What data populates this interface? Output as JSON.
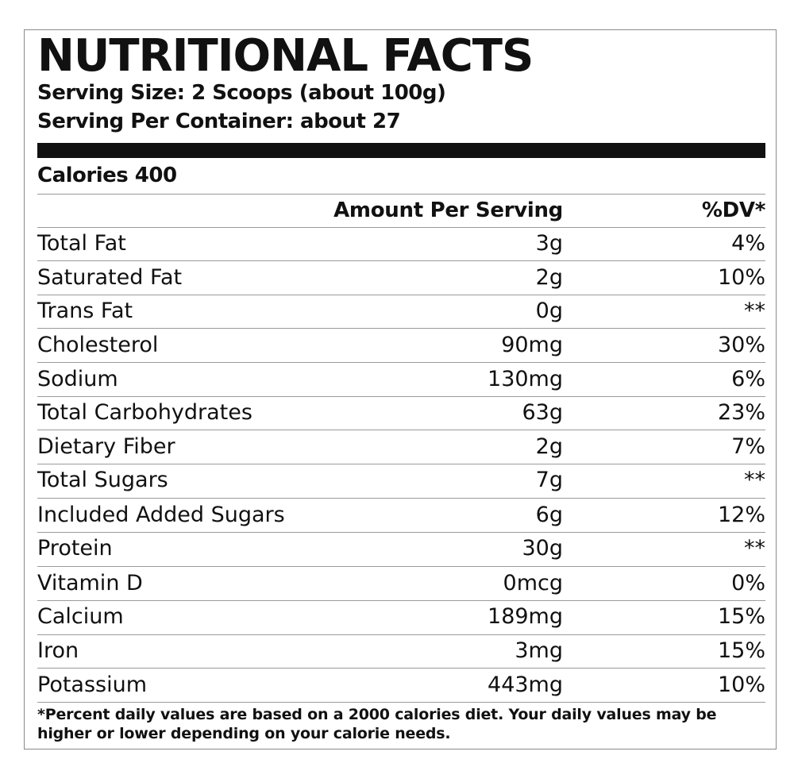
{
  "label": {
    "title": "NUTRITIONAL FACTS",
    "serving_size": "Serving Size: 2 Scoops (about 100g)",
    "servings_per_container": "Serving Per Container: about 27",
    "calories": "Calories 400",
    "columns": {
      "amount": "Amount Per Serving",
      "dv": "%DV*"
    },
    "nutrients": [
      {
        "name": "Total Fat",
        "amount": "3g",
        "dv": "4%"
      },
      {
        "name": "Saturated Fat",
        "amount": "2g",
        "dv": "10%"
      },
      {
        "name": "Trans Fat",
        "amount": "0g",
        "dv": "**"
      },
      {
        "name": "Cholesterol",
        "amount": "90mg",
        "dv": "30%"
      },
      {
        "name": "Sodium",
        "amount": "130mg",
        "dv": "6%"
      },
      {
        "name": "Total Carbohydrates",
        "amount": "63g",
        "dv": "23%"
      },
      {
        "name": "Dietary Fiber",
        "amount": "2g",
        "dv": "7%"
      },
      {
        "name": "Total Sugars",
        "amount": "7g",
        "dv": "**"
      },
      {
        "name": "Included Added Sugars",
        "amount": "6g",
        "dv": "12%"
      },
      {
        "name": "Protein",
        "amount": "30g",
        "dv": "**"
      },
      {
        "name": "Vitamin D",
        "amount": "0mcg",
        "dv": "0%"
      },
      {
        "name": "Calcium",
        "amount": "189mg",
        "dv": "15%"
      },
      {
        "name": "Iron",
        "amount": "3mg",
        "dv": "15%"
      },
      {
        "name": "Potassium",
        "amount": "443mg",
        "dv": "10%"
      }
    ],
    "footnote": "*Percent daily values are based on a 2000 calories diet. Your daily values may be higher or lower depending on your calorie needs."
  }
}
